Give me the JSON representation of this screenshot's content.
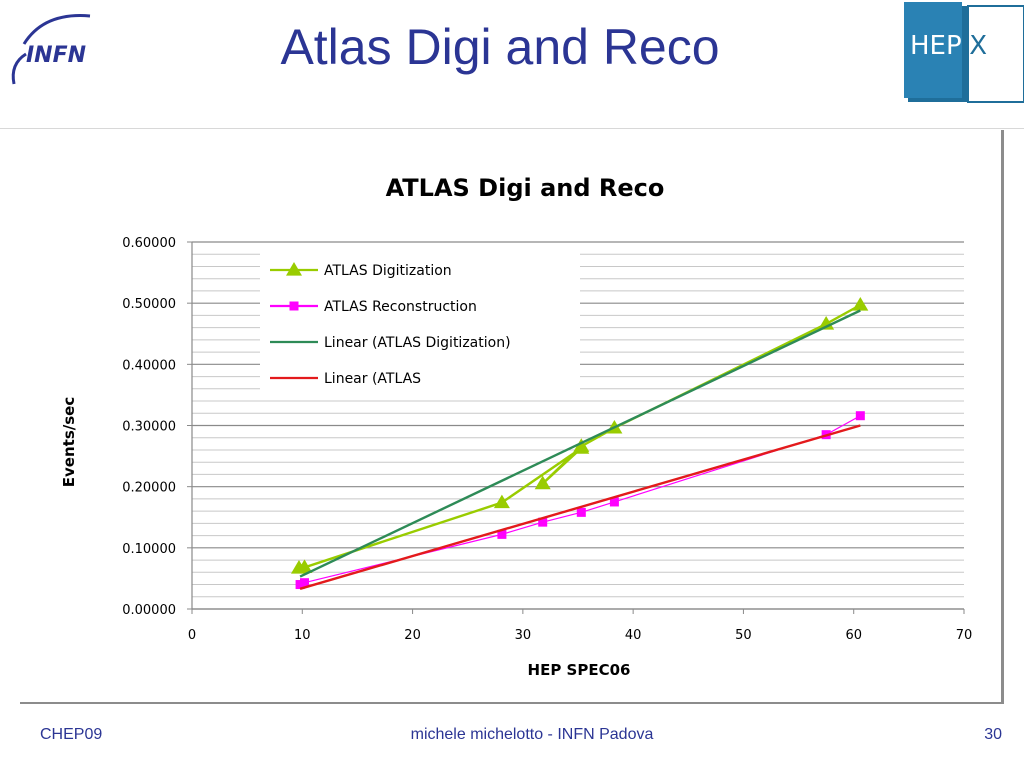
{
  "slide": {
    "title": "Atlas Digi and Reco",
    "logo_left_text": "INFN",
    "logo_right_text_a": "HEP",
    "logo_right_text_b": "iX"
  },
  "footer": {
    "left": "CHEP09",
    "center": "michele michelotto - INFN Padova",
    "right": "30"
  },
  "chart_data": {
    "type": "line",
    "title": "ATLAS Digi and Reco",
    "xlabel": "HEP SPEC06",
    "ylabel": "Events/sec",
    "xlim": [
      0,
      70
    ],
    "ylim": [
      0,
      0.6
    ],
    "x_ticks": [
      "0",
      "10",
      "20",
      "30",
      "40",
      "50",
      "60",
      "70"
    ],
    "y_ticks": [
      "0.00000",
      "0.10000",
      "0.20000",
      "0.30000",
      "0.40000",
      "0.50000",
      "0.60000"
    ],
    "grid": true,
    "legend_position": "top-left",
    "series": [
      {
        "name": "ATLAS Digitization",
        "kind": "data",
        "marker": "triangle",
        "color": "#99cc00",
        "points": [
          [
            9.7,
            0.067
          ],
          [
            10.2,
            0.068
          ],
          [
            28.1,
            0.174
          ],
          [
            35.3,
            0.263
          ],
          [
            31.8,
            0.205
          ],
          [
            35.3,
            0.266
          ],
          [
            38.3,
            0.296
          ],
          [
            57.5,
            0.466
          ],
          [
            60.6,
            0.497
          ]
        ]
      },
      {
        "name": "ATLAS Reconstruction",
        "kind": "data",
        "marker": "square",
        "color": "#ff00ff",
        "points": [
          [
            9.8,
            0.04
          ],
          [
            10.2,
            0.043
          ],
          [
            28.1,
            0.122
          ],
          [
            31.8,
            0.142
          ],
          [
            35.3,
            0.158
          ],
          [
            38.3,
            0.175
          ],
          [
            57.5,
            0.285
          ],
          [
            60.6,
            0.316
          ]
        ]
      },
      {
        "name": "Linear (ATLAS Digitization)",
        "kind": "trend",
        "color": "#2e8b57",
        "points": [
          [
            9.8,
            0.053
          ],
          [
            60.6,
            0.488
          ]
        ]
      },
      {
        "name": "Linear (ATLAS",
        "kind": "trend",
        "color": "#e31a1c",
        "points": [
          [
            9.8,
            0.033
          ],
          [
            60.6,
            0.3
          ]
        ]
      }
    ]
  }
}
